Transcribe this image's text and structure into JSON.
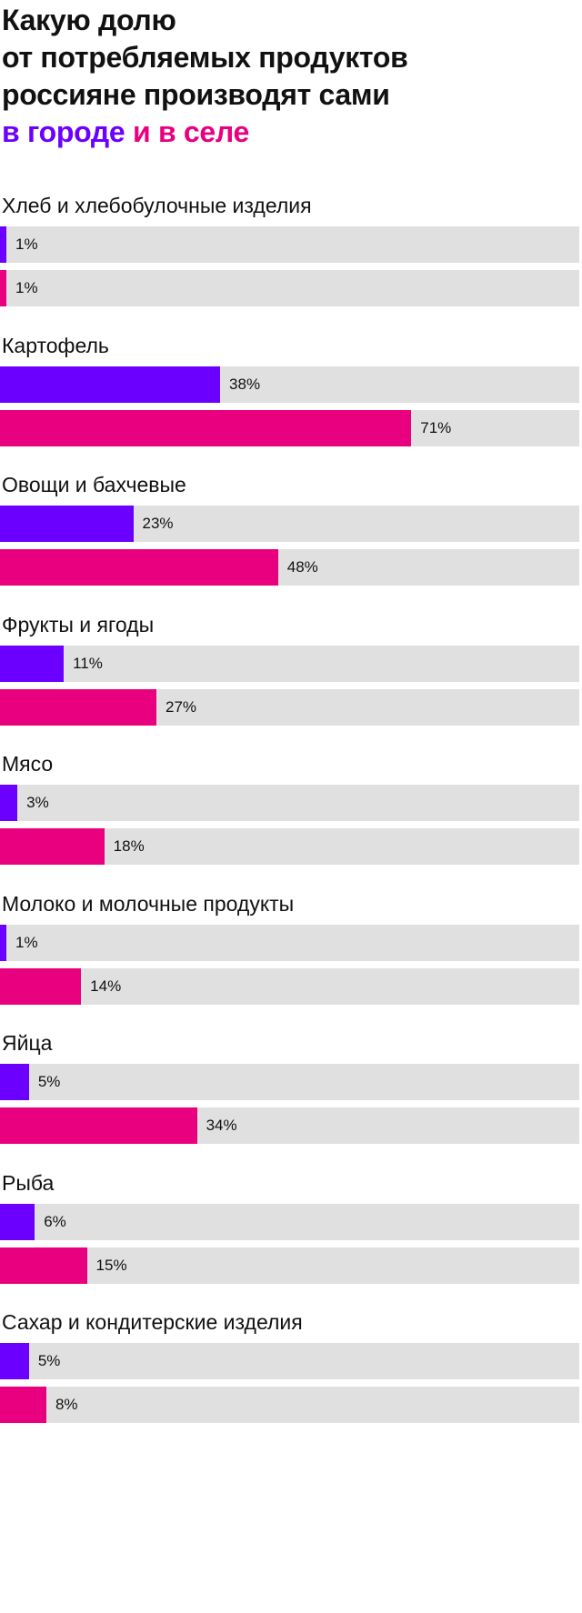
{
  "title": {
    "lines": [
      "Какую долю",
      "от потребляемых продуктов",
      "россияне производят сами"
    ],
    "legend_city": "в городе",
    "legend_village": "и в селе"
  },
  "colors": {
    "city": "#6b00ff",
    "village": "#e8007f",
    "track": "#e0e0e0",
    "text": "#111111"
  },
  "chart_data": {
    "type": "bar",
    "orientation": "horizontal",
    "title": "Какую долю от потребляемых продуктов россияне производят сами",
    "unit": "%",
    "xlim": [
      0,
      100
    ],
    "grid": false,
    "legend_placement": "in title",
    "categories": [
      "Хлеб и хлебобулочные изделия",
      "Картофель",
      "Овощи и бахчевые",
      "Фрукты и ягоды",
      "Мясо",
      "Молоко и молочные продукты",
      "Яйца",
      "Рыба",
      "Сахар и кондитерские изделия"
    ],
    "series": [
      {
        "name": "в городе",
        "values": [
          1,
          38,
          23,
          11,
          3,
          1,
          5,
          6,
          5
        ],
        "labels": [
          "1%",
          "38%",
          "23%",
          "11%",
          "3%",
          "1%",
          "5%",
          "6%",
          "5%"
        ]
      },
      {
        "name": "в селе",
        "values": [
          1,
          71,
          48,
          27,
          18,
          14,
          34,
          15,
          8
        ],
        "labels": [
          "1%",
          "71%",
          "48%",
          "27%",
          "18%",
          "14%",
          "34%",
          "15%",
          "8%"
        ]
      }
    ]
  }
}
